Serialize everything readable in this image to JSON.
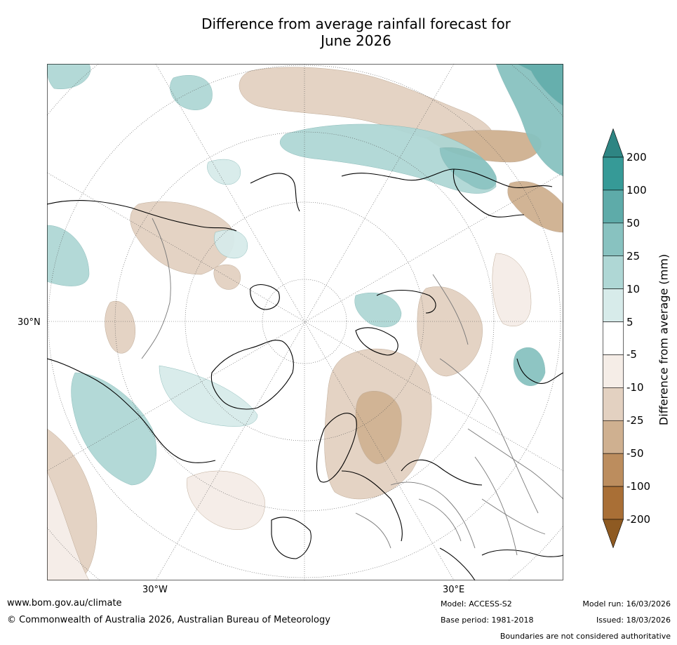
{
  "title": {
    "line1": "Difference from average rainfall forecast for",
    "line2": "June 2026"
  },
  "map": {
    "projection": "north polar stereographic",
    "labels": {
      "lat30": "30°N",
      "lon_w30": "30°W",
      "lon_e30": "30°E"
    },
    "palette": {
      "wet": "#2e8f8d",
      "dry": "#a86e33",
      "neutral": "#ffffff"
    }
  },
  "colorbar": {
    "title": "Difference from average (mm)",
    "ticks": [
      "200",
      "100",
      "50",
      "25",
      "10",
      "5",
      "-5",
      "-10",
      "-25",
      "-50",
      "-100",
      "-200"
    ],
    "colors": [
      "#2e8583",
      "#369a97",
      "#5eaba9",
      "#88c2c0",
      "#afd7d5",
      "#d7ebea",
      "#ffffff",
      "#f5ede7",
      "#e3d1c1",
      "#cfb090",
      "#bc8d5e",
      "#a96f36",
      "#8e5a22"
    ]
  },
  "footer": {
    "url": "www.bom.gov.au/climate",
    "copyright": "© Commonwealth of Australia 2026, Australian Bureau of Meteorology",
    "model": "Model: ACCESS-S2",
    "base_period": "Base period: 1981-2018",
    "model_run": "Model run: 16/03/2026",
    "issued": "Issued: 18/03/2026",
    "disclaimer": "Boundaries are not considered authoritative"
  }
}
